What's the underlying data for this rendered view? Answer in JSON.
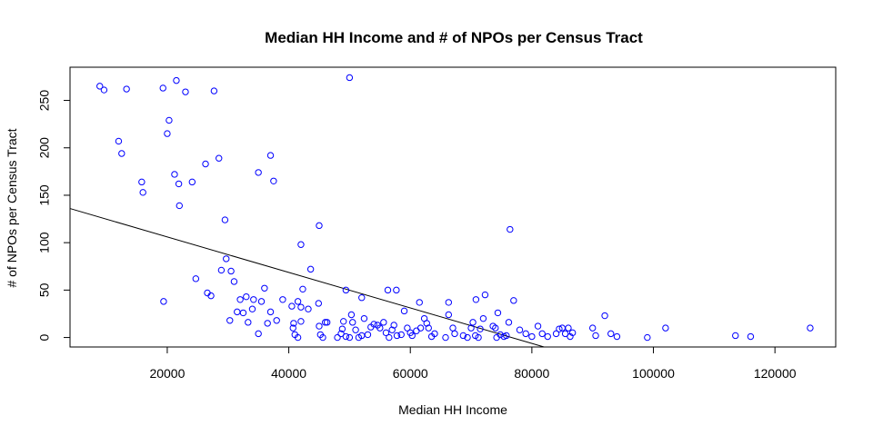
{
  "chart_data": {
    "type": "scatter",
    "title": "Median HH Income and # of NPOs per Census Tract",
    "xlabel": "Median HH Income",
    "ylabel": "# of NPOs per Census Tract",
    "xlim": [
      4000,
      130000
    ],
    "ylim": [
      -10,
      285
    ],
    "x_ticks": [
      20000,
      40000,
      60000,
      80000,
      100000,
      120000
    ],
    "x_tick_labels": [
      "20000",
      "40000",
      "60000",
      "80000",
      "100000",
      "120000"
    ],
    "y_ticks": [
      0,
      50,
      100,
      150,
      200,
      250
    ],
    "y_tick_labels": [
      "0",
      "50",
      "100",
      "150",
      "200",
      "250"
    ],
    "grid": false,
    "point_color": "#0000ff",
    "line_color": "#000000",
    "regression_line": {
      "x": [
        4000,
        82000
      ],
      "y": [
        136,
        -10
      ]
    },
    "points": [
      [
        8900,
        265
      ],
      [
        9600,
        261
      ],
      [
        13300,
        262
      ],
      [
        19300,
        263
      ],
      [
        21500,
        271
      ],
      [
        23000,
        259
      ],
      [
        27700,
        260
      ],
      [
        50000,
        274
      ],
      [
        12000,
        207
      ],
      [
        12500,
        194
      ],
      [
        20300,
        229
      ],
      [
        20000,
        215
      ],
      [
        28500,
        189
      ],
      [
        37000,
        192
      ],
      [
        15800,
        164
      ],
      [
        16000,
        153
      ],
      [
        21200,
        172
      ],
      [
        21900,
        162
      ],
      [
        24100,
        164
      ],
      [
        26300,
        183
      ],
      [
        35000,
        174
      ],
      [
        37500,
        165
      ],
      [
        22000,
        139
      ],
      [
        29500,
        124
      ],
      [
        45000,
        118
      ],
      [
        76400,
        114
      ],
      [
        42000,
        98
      ],
      [
        29700,
        83
      ],
      [
        28900,
        71
      ],
      [
        30500,
        70
      ],
      [
        31000,
        59
      ],
      [
        43600,
        72
      ],
      [
        24700,
        62
      ],
      [
        26600,
        47
      ],
      [
        27200,
        44
      ],
      [
        19400,
        38
      ],
      [
        42300,
        51
      ],
      [
        49400,
        50
      ],
      [
        56300,
        50
      ],
      [
        57700,
        50
      ],
      [
        72300,
        45
      ],
      [
        77000,
        39
      ],
      [
        92000,
        23
      ],
      [
        61500,
        37
      ],
      [
        66300,
        37
      ],
      [
        70800,
        40
      ],
      [
        52000,
        42
      ],
      [
        36000,
        52
      ],
      [
        32000,
        40
      ],
      [
        33000,
        43
      ],
      [
        34200,
        40
      ],
      [
        35500,
        38
      ],
      [
        34000,
        30
      ],
      [
        31500,
        27
      ],
      [
        32500,
        26
      ],
      [
        30300,
        18
      ],
      [
        33300,
        16
      ],
      [
        37000,
        27
      ],
      [
        38000,
        18
      ],
      [
        36500,
        15
      ],
      [
        39000,
        40
      ],
      [
        40500,
        33
      ],
      [
        41500,
        38
      ],
      [
        42000,
        32
      ],
      [
        43200,
        30
      ],
      [
        44900,
        36
      ],
      [
        40800,
        15
      ],
      [
        40700,
        10
      ],
      [
        41000,
        3
      ],
      [
        41500,
        0
      ],
      [
        42000,
        17
      ],
      [
        46300,
        16
      ],
      [
        46000,
        16
      ],
      [
        45000,
        12
      ],
      [
        45200,
        3
      ],
      [
        45600,
        0
      ],
      [
        48000,
        0
      ],
      [
        48600,
        4
      ],
      [
        48800,
        9
      ],
      [
        49000,
        17
      ],
      [
        49400,
        1
      ],
      [
        50000,
        0
      ],
      [
        50300,
        24
      ],
      [
        50500,
        16
      ],
      [
        51000,
        8
      ],
      [
        51500,
        0
      ],
      [
        52000,
        2
      ],
      [
        52400,
        20
      ],
      [
        53000,
        3
      ],
      [
        53500,
        11
      ],
      [
        54000,
        14
      ],
      [
        54600,
        13
      ],
      [
        55000,
        10
      ],
      [
        55600,
        16
      ],
      [
        56000,
        5
      ],
      [
        56500,
        0
      ],
      [
        57000,
        8
      ],
      [
        57300,
        13
      ],
      [
        57800,
        2
      ],
      [
        58500,
        3
      ],
      [
        59000,
        28
      ],
      [
        59500,
        10
      ],
      [
        60000,
        5
      ],
      [
        60300,
        2
      ],
      [
        61000,
        7
      ],
      [
        61700,
        10
      ],
      [
        62300,
        20
      ],
      [
        62700,
        15
      ],
      [
        63000,
        10
      ],
      [
        63500,
        1
      ],
      [
        64000,
        4
      ],
      [
        65800,
        0
      ],
      [
        66300,
        24
      ],
      [
        67000,
        10
      ],
      [
        67300,
        4
      ],
      [
        68700,
        2
      ],
      [
        69400,
        0
      ],
      [
        70000,
        10
      ],
      [
        70300,
        16
      ],
      [
        70700,
        2
      ],
      [
        71200,
        0
      ],
      [
        71500,
        9
      ],
      [
        72000,
        20
      ],
      [
        73600,
        12
      ],
      [
        74000,
        10
      ],
      [
        74200,
        0
      ],
      [
        74400,
        26
      ],
      [
        74800,
        3
      ],
      [
        75400,
        1
      ],
      [
        75800,
        2
      ],
      [
        76200,
        16
      ],
      [
        78000,
        8
      ],
      [
        79000,
        4
      ],
      [
        80000,
        1
      ],
      [
        81000,
        12
      ],
      [
        81700,
        4
      ],
      [
        82600,
        1
      ],
      [
        84000,
        4
      ],
      [
        84500,
        9
      ],
      [
        85000,
        10
      ],
      [
        85500,
        4
      ],
      [
        86000,
        10
      ],
      [
        86300,
        1
      ],
      [
        86700,
        5
      ],
      [
        90000,
        10
      ],
      [
        90500,
        2
      ],
      [
        93000,
        4
      ],
      [
        94000,
        1
      ],
      [
        99000,
        0
      ],
      [
        102000,
        10
      ],
      [
        113500,
        2
      ],
      [
        116000,
        1
      ],
      [
        125800,
        10
      ],
      [
        35000,
        4
      ]
    ]
  }
}
